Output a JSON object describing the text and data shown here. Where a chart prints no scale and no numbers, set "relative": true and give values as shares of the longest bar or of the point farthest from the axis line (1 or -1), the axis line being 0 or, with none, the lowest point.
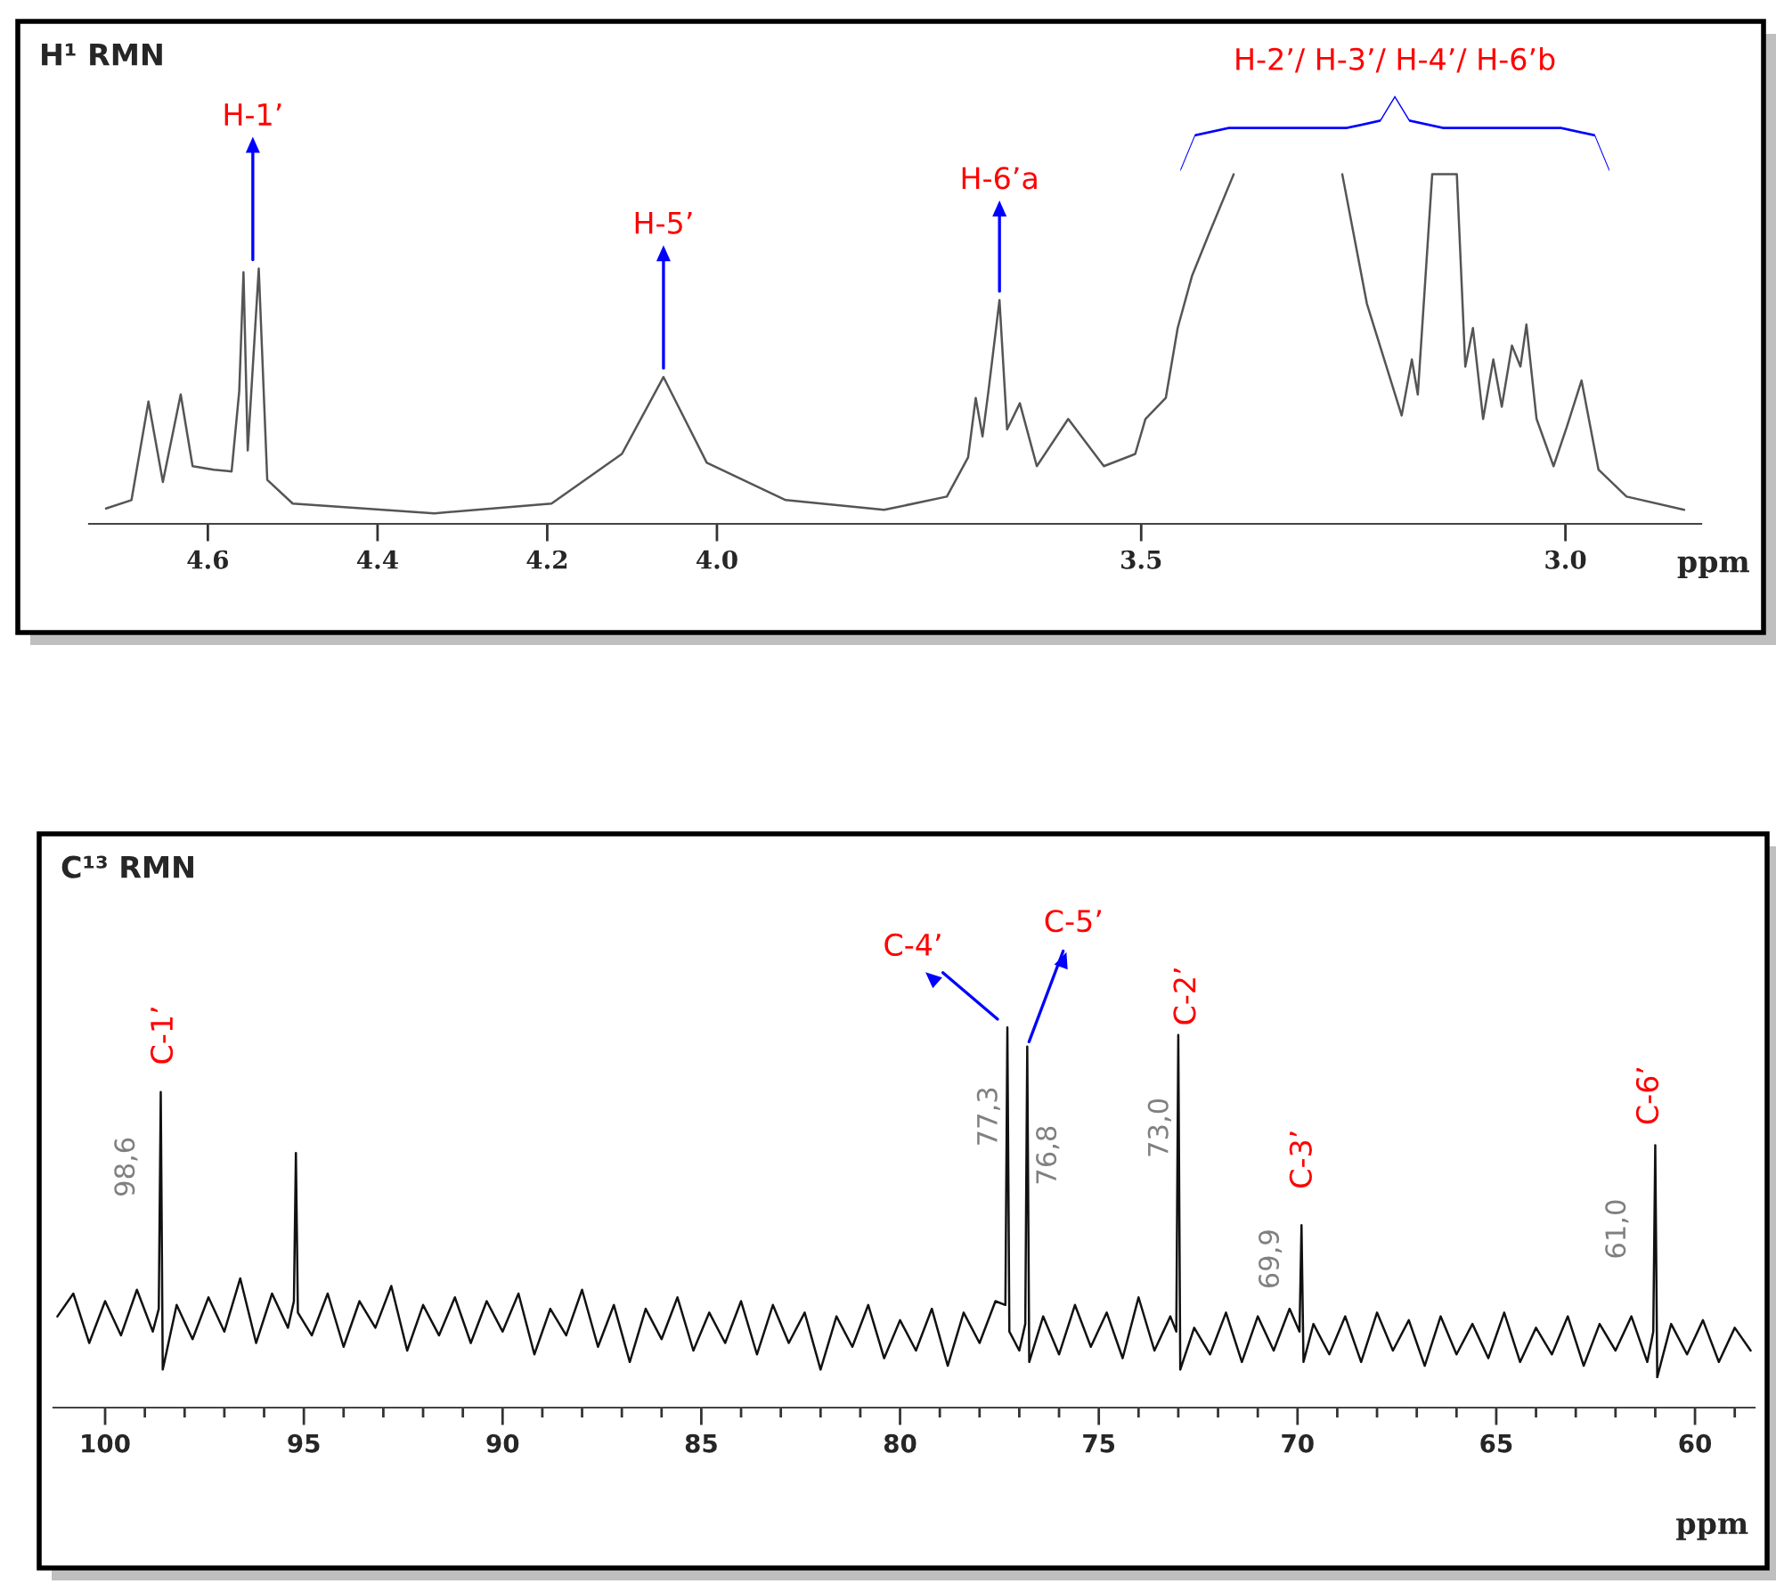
{
  "chart_data": [
    {
      "type": "line",
      "title": "H¹ RMN",
      "xlabel": "ppm",
      "relative": true,
      "grid": false,
      "legend": false,
      "xlim": [
        4.74,
        2.84
      ],
      "xticks": [
        4.6,
        4.4,
        4.2,
        {
          "value": 4.0,
          "label": "4.0"
        },
        3.5,
        {
          "value": 3.0,
          "label": "3.0"
        }
      ],
      "series": [
        {
          "color": "#555555",
          "x": [
            4.72,
            4.69,
            4.67,
            4.653,
            4.632,
            4.618,
            4.593,
            4.572,
            4.563,
            4.558,
            4.553,
            4.54,
            4.53,
            4.5,
            4.333,
            4.195,
            4.112,
            4.063,
            4.012,
            3.919,
            3.803,
            3.729,
            3.704,
            3.695,
            3.687,
            3.68,
            3.667,
            3.658,
            3.643,
            3.623,
            3.586,
            3.544,
            3.507,
            3.495,
            3.471,
            3.457,
            3.44,
            3.42,
            3.391,
            3.33,
            3.263,
            3.234,
            3.193,
            3.181,
            3.174,
            3.157,
            3.128,
            3.118,
            3.109,
            3.097,
            3.085,
            3.075,
            3.063,
            3.053,
            3.046,
            3.034,
            3.014,
            2.998,
            2.981,
            2.961,
            2.928,
            2.86
          ],
          "values": [
            0.044,
            0.068,
            0.35,
            0.12,
            0.37,
            0.165,
            0.155,
            0.15,
            0.38,
            0.72,
            0.21,
            0.73,
            0.126,
            0.058,
            0.03,
            0.058,
            0.2,
            0.42,
            0.175,
            0.068,
            0.04,
            0.078,
            0.19,
            0.36,
            0.25,
            0.38,
            0.64,
            0.27,
            0.345,
            0.165,
            0.3,
            0.165,
            0.2,
            0.3,
            0.36,
            0.56,
            0.71,
            0.83,
            1.0,
            null,
            1.0,
            0.63,
            0.31,
            0.47,
            0.37,
            1.0,
            1.0,
            0.45,
            0.56,
            0.3,
            0.47,
            0.335,
            0.51,
            0.45,
            0.57,
            0.3,
            0.165,
            0.28,
            0.41,
            0.155,
            0.078,
            0.04
          ]
        }
      ],
      "annotations": [
        {
          "text": "H-1’",
          "x": 4.547,
          "y": 0.73
        },
        {
          "text": "H-5’",
          "x": 4.063,
          "y": 0.42
        },
        {
          "text": "H-6’a",
          "x": 3.667,
          "y": 0.64
        },
        "H-2’/ H-3’/ H-4’/ H-6’b"
      ]
    },
    {
      "type": "line",
      "title": "C¹³ RMN",
      "xlabel": "ppm",
      "relative": true,
      "grid": false,
      "legend": false,
      "xlim": [
        101.3,
        58.5
      ],
      "xticks": [
        100,
        {
          "value": 99,
          "label": null
        },
        {
          "value": 98,
          "label": null
        },
        {
          "value": 97,
          "label": null
        },
        {
          "value": 96,
          "label": null
        },
        95,
        {
          "value": 94,
          "label": null
        },
        {
          "value": 93,
          "label": null
        },
        {
          "value": 92,
          "label": null
        },
        {
          "value": 91,
          "label": null
        },
        90,
        {
          "value": 89,
          "label": null
        },
        {
          "value": 88,
          "label": null
        },
        {
          "value": 87,
          "label": null
        },
        {
          "value": 86,
          "label": null
        },
        85,
        {
          "value": 84,
          "label": null
        },
        {
          "value": 83,
          "label": null
        },
        {
          "value": 82,
          "label": null
        },
        {
          "value": 81,
          "label": null
        },
        80,
        {
          "value": 79,
          "label": null
        },
        {
          "value": 78,
          "label": null
        },
        {
          "value": 77,
          "label": null
        },
        {
          "value": 76,
          "label": null
        },
        75,
        {
          "value": 74,
          "label": null
        },
        {
          "value": 73,
          "label": null
        },
        {
          "value": 72,
          "label": null
        },
        {
          "value": 71,
          "label": null
        },
        70,
        {
          "value": 69,
          "label": null
        },
        {
          "value": 68,
          "label": null
        },
        {
          "value": 67,
          "label": null
        },
        {
          "value": 66,
          "label": null
        },
        65,
        {
          "value": 64,
          "label": null
        },
        {
          "value": 63,
          "label": null
        },
        {
          "value": 62,
          "label": null
        },
        {
          "value": 61,
          "label": null
        },
        60,
        {
          "value": 59,
          "label": null
        }
      ],
      "series": [
        {
          "color": "#111111",
          "x": [
            101.2,
            100.8,
            100.4,
            100.0,
            99.6,
            99.2,
            98.8,
            98.65,
            98.6,
            98.55,
            98.2,
            97.8,
            97.4,
            97.0,
            96.6,
            96.2,
            95.8,
            95.4,
            95.25,
            95.2,
            95.15,
            94.8,
            94.4,
            94.0,
            93.6,
            93.2,
            92.8,
            92.4,
            92.0,
            91.6,
            91.2,
            90.8,
            90.4,
            90.0,
            89.6,
            89.2,
            88.8,
            88.4,
            88.0,
            87.6,
            87.2,
            86.8,
            86.4,
            86.0,
            85.6,
            85.2,
            84.8,
            84.4,
            84.0,
            83.6,
            83.2,
            82.8,
            82.4,
            82.0,
            81.6,
            81.2,
            80.8,
            80.4,
            80.0,
            79.6,
            79.2,
            78.8,
            78.4,
            78.0,
            77.6,
            77.35,
            77.3,
            77.25,
            77.0,
            76.85,
            76.8,
            76.75,
            76.4,
            76.0,
            75.6,
            75.2,
            74.8,
            74.4,
            74.0,
            73.6,
            73.2,
            73.05,
            73.0,
            72.95,
            72.6,
            72.2,
            71.8,
            71.4,
            71.0,
            70.6,
            70.2,
            69.95,
            69.9,
            69.85,
            69.6,
            69.2,
            68.8,
            68.4,
            68.0,
            67.6,
            67.2,
            66.8,
            66.4,
            66.0,
            65.6,
            65.2,
            64.8,
            64.4,
            64.0,
            63.6,
            63.2,
            62.8,
            62.4,
            62.0,
            61.6,
            61.2,
            61.05,
            61.0,
            60.95,
            60.6,
            60.2,
            59.8,
            59.4,
            59.0,
            58.6
          ],
          "values": [
            0.24,
            0.3,
            0.17,
            0.28,
            0.19,
            0.31,
            0.2,
            0.26,
            0.83,
            0.1,
            0.27,
            0.18,
            0.29,
            0.2,
            0.34,
            0.17,
            0.3,
            0.21,
            0.28,
            0.67,
            0.25,
            0.19,
            0.3,
            0.16,
            0.28,
            0.21,
            0.32,
            0.15,
            0.27,
            0.19,
            0.29,
            0.17,
            0.28,
            0.2,
            0.3,
            0.14,
            0.26,
            0.19,
            0.31,
            0.16,
            0.27,
            0.12,
            0.26,
            0.18,
            0.29,
            0.15,
            0.25,
            0.17,
            0.28,
            0.14,
            0.27,
            0.17,
            0.25,
            0.1,
            0.24,
            0.16,
            0.27,
            0.13,
            0.23,
            0.15,
            0.26,
            0.11,
            0.25,
            0.17,
            0.28,
            0.27,
            1.0,
            0.2,
            0.15,
            0.22,
            0.95,
            0.12,
            0.24,
            0.14,
            0.27,
            0.16,
            0.25,
            0.13,
            0.29,
            0.15,
            0.24,
            0.2,
            0.98,
            0.1,
            0.21,
            0.14,
            0.25,
            0.12,
            0.24,
            0.15,
            0.26,
            0.2,
            0.48,
            0.12,
            0.22,
            0.14,
            0.24,
            0.12,
            0.25,
            0.15,
            0.23,
            0.11,
            0.24,
            0.14,
            0.22,
            0.13,
            0.25,
            0.12,
            0.21,
            0.14,
            0.24,
            0.11,
            0.22,
            0.15,
            0.24,
            0.12,
            0.2,
            0.69,
            0.08,
            0.22,
            0.14,
            0.23,
            0.12,
            0.21,
            0.15
          ]
        }
      ],
      "annotations": [
        {
          "text": "C-1’",
          "x": 98.6,
          "y": 0.83
        },
        {
          "text": "98,6",
          "x": 98.6,
          "y": 0.83
        },
        {
          "text": "C-4’",
          "x": 77.3,
          "y": 1.0
        },
        {
          "text": "77,3",
          "x": 77.3,
          "y": 1.0
        },
        {
          "text": "C-5’",
          "x": 76.8,
          "y": 0.95
        },
        {
          "text": "76,8",
          "x": 76.8,
          "y": 0.95
        },
        {
          "text": "C-2’",
          "x": 73.0,
          "y": 0.98
        },
        {
          "text": "73,0",
          "x": 73.0,
          "y": 0.98
        },
        {
          "text": "C-3’",
          "x": 69.9,
          "y": 0.48
        },
        {
          "text": "69,9",
          "x": 69.9,
          "y": 0.48
        },
        {
          "text": "C-6’",
          "x": 61.0,
          "y": 0.69
        },
        {
          "text": "61,0",
          "x": 61.0,
          "y": 0.69
        }
      ]
    }
  ]
}
